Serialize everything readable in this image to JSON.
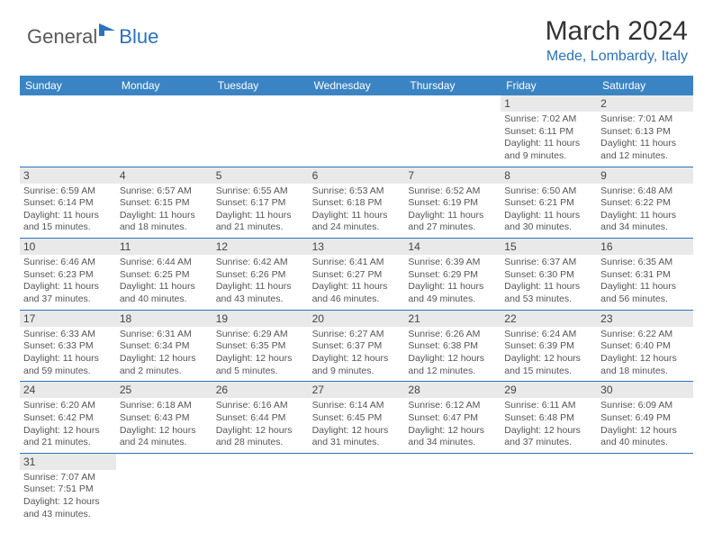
{
  "brand": {
    "part1": "General",
    "part2": "Blue"
  },
  "title": "March 2024",
  "location": "Mede, Lombardy, Italy",
  "colors": {
    "accent": "#3b84c4",
    "link": "#2a72c0",
    "daybg": "#e9e9ea",
    "text": "#555555"
  },
  "dayNames": [
    "Sunday",
    "Monday",
    "Tuesday",
    "Wednesday",
    "Thursday",
    "Friday",
    "Saturday"
  ],
  "weeks": [
    [
      null,
      null,
      null,
      null,
      null,
      {
        "d": "1",
        "sr": "7:02 AM",
        "ss": "6:11 PM",
        "dl": "11 hours and 9 minutes."
      },
      {
        "d": "2",
        "sr": "7:01 AM",
        "ss": "6:13 PM",
        "dl": "11 hours and 12 minutes."
      }
    ],
    [
      {
        "d": "3",
        "sr": "6:59 AM",
        "ss": "6:14 PM",
        "dl": "11 hours and 15 minutes."
      },
      {
        "d": "4",
        "sr": "6:57 AM",
        "ss": "6:15 PM",
        "dl": "11 hours and 18 minutes."
      },
      {
        "d": "5",
        "sr": "6:55 AM",
        "ss": "6:17 PM",
        "dl": "11 hours and 21 minutes."
      },
      {
        "d": "6",
        "sr": "6:53 AM",
        "ss": "6:18 PM",
        "dl": "11 hours and 24 minutes."
      },
      {
        "d": "7",
        "sr": "6:52 AM",
        "ss": "6:19 PM",
        "dl": "11 hours and 27 minutes."
      },
      {
        "d": "8",
        "sr": "6:50 AM",
        "ss": "6:21 PM",
        "dl": "11 hours and 30 minutes."
      },
      {
        "d": "9",
        "sr": "6:48 AM",
        "ss": "6:22 PM",
        "dl": "11 hours and 34 minutes."
      }
    ],
    [
      {
        "d": "10",
        "sr": "6:46 AM",
        "ss": "6:23 PM",
        "dl": "11 hours and 37 minutes."
      },
      {
        "d": "11",
        "sr": "6:44 AM",
        "ss": "6:25 PM",
        "dl": "11 hours and 40 minutes."
      },
      {
        "d": "12",
        "sr": "6:42 AM",
        "ss": "6:26 PM",
        "dl": "11 hours and 43 minutes."
      },
      {
        "d": "13",
        "sr": "6:41 AM",
        "ss": "6:27 PM",
        "dl": "11 hours and 46 minutes."
      },
      {
        "d": "14",
        "sr": "6:39 AM",
        "ss": "6:29 PM",
        "dl": "11 hours and 49 minutes."
      },
      {
        "d": "15",
        "sr": "6:37 AM",
        "ss": "6:30 PM",
        "dl": "11 hours and 53 minutes."
      },
      {
        "d": "16",
        "sr": "6:35 AM",
        "ss": "6:31 PM",
        "dl": "11 hours and 56 minutes."
      }
    ],
    [
      {
        "d": "17",
        "sr": "6:33 AM",
        "ss": "6:33 PM",
        "dl": "11 hours and 59 minutes."
      },
      {
        "d": "18",
        "sr": "6:31 AM",
        "ss": "6:34 PM",
        "dl": "12 hours and 2 minutes."
      },
      {
        "d": "19",
        "sr": "6:29 AM",
        "ss": "6:35 PM",
        "dl": "12 hours and 5 minutes."
      },
      {
        "d": "20",
        "sr": "6:27 AM",
        "ss": "6:37 PM",
        "dl": "12 hours and 9 minutes."
      },
      {
        "d": "21",
        "sr": "6:26 AM",
        "ss": "6:38 PM",
        "dl": "12 hours and 12 minutes."
      },
      {
        "d": "22",
        "sr": "6:24 AM",
        "ss": "6:39 PM",
        "dl": "12 hours and 15 minutes."
      },
      {
        "d": "23",
        "sr": "6:22 AM",
        "ss": "6:40 PM",
        "dl": "12 hours and 18 minutes."
      }
    ],
    [
      {
        "d": "24",
        "sr": "6:20 AM",
        "ss": "6:42 PM",
        "dl": "12 hours and 21 minutes."
      },
      {
        "d": "25",
        "sr": "6:18 AM",
        "ss": "6:43 PM",
        "dl": "12 hours and 24 minutes."
      },
      {
        "d": "26",
        "sr": "6:16 AM",
        "ss": "6:44 PM",
        "dl": "12 hours and 28 minutes."
      },
      {
        "d": "27",
        "sr": "6:14 AM",
        "ss": "6:45 PM",
        "dl": "12 hours and 31 minutes."
      },
      {
        "d": "28",
        "sr": "6:12 AM",
        "ss": "6:47 PM",
        "dl": "12 hours and 34 minutes."
      },
      {
        "d": "29",
        "sr": "6:11 AM",
        "ss": "6:48 PM",
        "dl": "12 hours and 37 minutes."
      },
      {
        "d": "30",
        "sr": "6:09 AM",
        "ss": "6:49 PM",
        "dl": "12 hours and 40 minutes."
      }
    ],
    [
      {
        "d": "31",
        "sr": "7:07 AM",
        "ss": "7:51 PM",
        "dl": "12 hours and 43 minutes."
      },
      null,
      null,
      null,
      null,
      null,
      null
    ]
  ],
  "labels": {
    "sunrise": "Sunrise:",
    "sunset": "Sunset:",
    "daylight": "Daylight:"
  }
}
